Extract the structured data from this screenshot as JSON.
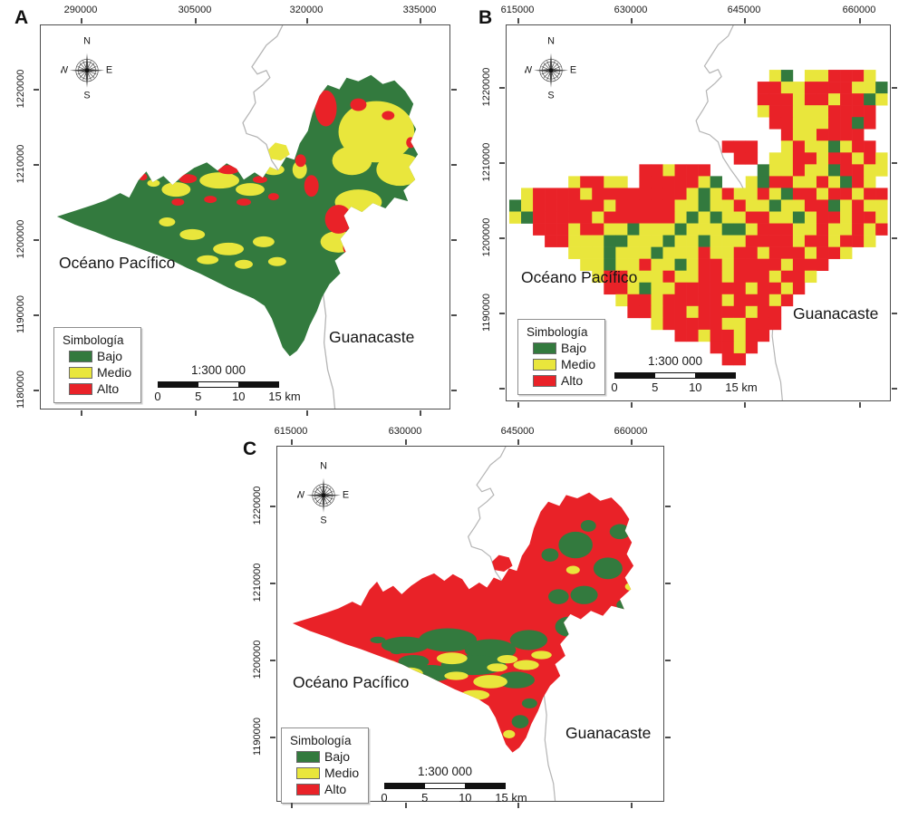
{
  "figure": {
    "colors": {
      "bajo": "#337a3e",
      "medio": "#e9e63c",
      "alto": "#e92228",
      "frame": "#4d4d4d",
      "coastline": "#b5b5b5",
      "text": "#1a1a1a"
    },
    "compass": {
      "north": "N",
      "south": "S",
      "east": "E",
      "west": "W"
    },
    "legend": {
      "title": "Simbología",
      "items": [
        {
          "label": "Bajo",
          "level": "low",
          "color": "#337a3e"
        },
        {
          "label": "Medio",
          "level": "medium",
          "color": "#e9e63c"
        },
        {
          "label": "Alto",
          "level": "high",
          "color": "#e92228"
        }
      ]
    },
    "scale_bar": {
      "ratio_label": "1:300 000",
      "tick_labels": [
        "0",
        "5",
        "10",
        "15 km"
      ]
    },
    "panels": [
      {
        "letter": "A",
        "map_style": "vector",
        "dominant_class": "Bajo",
        "x_axis_labels": [
          "290000",
          "305000",
          "320000",
          "335000"
        ],
        "y_axis_labels": [
          "1220000",
          "1210000",
          "1200000",
          "1190000",
          "1180000"
        ],
        "ocean_label": "Océano Pacífico",
        "region_label": "Guanacaste"
      },
      {
        "letter": "B",
        "map_style": "raster-grid",
        "dominant_class": "Alto",
        "x_axis_labels": [
          "615000",
          "630000",
          "645000",
          "660000"
        ],
        "y_axis_labels": [
          "1220000",
          "1210000",
          "1200000",
          "1190000"
        ],
        "ocean_label": "Océano Pacífico",
        "region_label": "Guanacaste"
      },
      {
        "letter": "C",
        "map_style": "vector",
        "dominant_class": "Alto",
        "x_axis_labels": [
          "615000",
          "630000",
          "645000",
          "660000"
        ],
        "y_axis_labels": [
          "1220000",
          "1210000",
          "1200000",
          "1190000"
        ],
        "ocean_label": "Océano Pacífico",
        "region_label": "Guanacaste"
      }
    ],
    "panel_b_grid": {
      "cell_key": {
        "G": "Bajo",
        "Y": "Medio",
        "R": "Alto",
        ".": "no-data"
      },
      "rows": [
        "................................",
        "................................",
        "................................",
        "......................YG.YYRRRY.",
        ".....................RRYYRRRRYYG",
        ".....................RRRYRRYRRGY",
        ".....................YRRYYYRRRR.",
        "......................RRYYYRRGR.",
        ".......................RYYRRRR..",
        "..................RRR..YRYYGYRR.",
        "...................RR.YYRRYRRYRY",
        "...........RRYRRR....GYYRYYGRRYY",
        ".....YRRYY.RRRRRYG..YGRRYYRYGRY.",
        ".YRRRRYRRRRRRRRYGYRYYRYGRRYRRYRR",
        "GYRRRRRRYRRRRRYYGYYRYYGYYRRGYRYY",
        "YGRRRRRYRRRRRRYGYGYYRRYYGYRRYRRY",
        "..RRRYRRYYGYYYGYYYGGYRRRYYRYYRYR",
        "...RRYYYGGYYYGYYGYYYRRRRYRRYRRY.",
        ".....YYYGYYYGYYYRYYRRYRRRYRRY...",
        "......YYGYYRYYGYRRYRRRRYRRR.....",
        ".......YRRYYYRYYRRYRRRYRRY......",
        "........RRYGYYRRRRRRYRRYR.......",
        ".........YRRYRRRRRYRRRYR........",
        "..........RRYRRYRRRRYRR.........",
        "............YRRRRRYYRRR.........",
        "..............RRYRRYRR..........",
        ".................RRYR...........",
        "..................RR............"
      ]
    }
  }
}
